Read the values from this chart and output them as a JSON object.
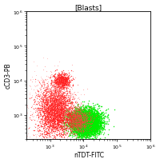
{
  "title": "[Blasts]",
  "xlabel": "nTDT-FITC",
  "ylabel": "cCD3-PB",
  "xlim": [
    200,
    1000000
  ],
  "ylim": [
    200,
    1000000
  ],
  "bg_color": "#ffffff",
  "green_cluster": {
    "color": "#00ee00",
    "n": 6000,
    "x_log_mean": 4.05,
    "x_log_std": 0.22,
    "y_log_mean": 2.78,
    "y_log_std": 0.18
  },
  "red_main": {
    "color": "#ff2222",
    "n": 2500,
    "x_log_mean": 3.15,
    "x_log_std": 0.25,
    "y_log_mean": 3.1,
    "y_log_std": 0.35
  },
  "red_upper_blob": {
    "color": "#ff2222",
    "n": 500,
    "x_log_mean": 3.35,
    "x_log_std": 0.12,
    "y_log_mean": 4.0,
    "y_log_std": 0.1
  },
  "red_sparse_high": {
    "color": "#ff6666",
    "n": 600,
    "x_log_mean": 3.2,
    "x_log_std": 0.3,
    "y_log_mean": 3.6,
    "y_log_std": 0.3
  },
  "red_on_green": {
    "color": "#ff4444",
    "n": 1200,
    "x_log_mean": 3.8,
    "x_log_std": 0.2,
    "y_log_mean": 2.85,
    "y_log_std": 0.18
  },
  "red_sparse_scatter": {
    "color": "#ff8888",
    "n": 400,
    "x_log_mean": 2.8,
    "x_log_std": 0.4,
    "y_log_mean": 3.0,
    "y_log_std": 0.6
  }
}
